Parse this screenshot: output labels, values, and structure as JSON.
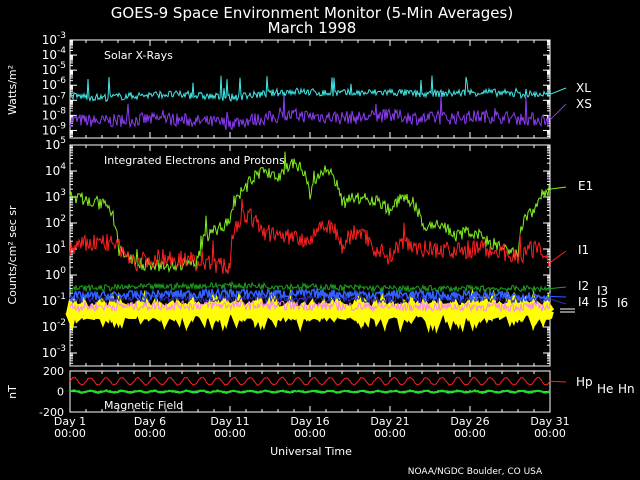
{
  "title": {
    "line1": "GOES-9 Space Environment Monitor (5-Min Averages)",
    "line2": "March 1998"
  },
  "footer": "NOAA/NGDC Boulder, CO USA",
  "x_axis": {
    "label": "Universal Time",
    "ticks": [
      {
        "day": 1,
        "l1": "Day 1",
        "l2": "00:00"
      },
      {
        "day": 6,
        "l1": "Day 6",
        "l2": "00:00"
      },
      {
        "day": 11,
        "l1": "Day 11",
        "l2": "00:00"
      },
      {
        "day": 16,
        "l1": "Day 16",
        "l2": "00:00"
      },
      {
        "day": 21,
        "l1": "Day 21",
        "l2": "00:00"
      },
      {
        "day": 26,
        "l1": "Day 26",
        "l2": "00:00"
      },
      {
        "day": 31,
        "l1": "Day 31",
        "l2": "00:00"
      }
    ],
    "xlim": [
      1,
      31
    ]
  },
  "chart_data": [
    {
      "type": "line",
      "panel": "xray",
      "title": "Solar X-Rays",
      "ylabel": "Watts/m²",
      "yscale": "log",
      "ylim_exp": [
        -9.5,
        -3
      ],
      "tick_exponents": [
        -3,
        -4,
        -5,
        -6,
        -7,
        -8,
        -9
      ],
      "series": [
        {
          "name": "XL",
          "color": "#40e8e8",
          "x": [
            1,
            3,
            5,
            7,
            9,
            11,
            13,
            15,
            17,
            19,
            21,
            23,
            25,
            27,
            29,
            31
          ],
          "y": [
            2e-07,
            1.5e-07,
            2e-07,
            2.5e-07,
            2e-07,
            1.5e-07,
            2.5e-07,
            4e-07,
            3e-07,
            3e-07,
            3.5e-07,
            2.5e-07,
            3e-07,
            3.5e-07,
            2.5e-07,
            2.5e-07
          ]
        },
        {
          "name": "XS",
          "color": "#8a3cf0",
          "x": [
            1,
            3,
            5,
            7,
            9,
            11,
            13,
            15,
            17,
            19,
            21,
            23,
            25,
            27,
            29,
            31
          ],
          "y": [
            5e-09,
            4e-09,
            5e-09,
            6e-09,
            4e-09,
            3e-09,
            6e-09,
            1e-08,
            8e-09,
            7e-09,
            1e-08,
            6e-09,
            7e-09,
            9e-09,
            6e-09,
            5e-09
          ]
        }
      ]
    },
    {
      "type": "line",
      "panel": "particles",
      "title": "Integrated Electrons and Protons",
      "ylabel": "Counts/cm² sec sr",
      "yscale": "log",
      "ylim_exp": [
        -3.5,
        5
      ],
      "tick_exponents": [
        5,
        4,
        3,
        2,
        1,
        0,
        -1,
        -2,
        -3
      ],
      "series": [
        {
          "name": "E1",
          "color": "#80f020",
          "x": [
            1,
            2,
            3,
            4,
            5,
            7,
            9,
            11,
            12,
            13,
            14,
            15,
            16,
            17,
            18,
            19,
            20,
            21,
            22,
            23,
            24,
            25,
            26,
            27,
            28,
            29,
            30,
            31
          ],
          "y": [
            1000,
            800,
            500,
            10,
            3,
            2,
            3,
            100,
            2000,
            10000,
            5000,
            20000,
            1000,
            10000,
            500,
            1000,
            800,
            300,
            1000,
            50,
            100,
            30,
            50,
            20,
            10,
            5,
            300,
            2000
          ]
        },
        {
          "name": "I1",
          "color": "#ff2020",
          "x": [
            1,
            3,
            5,
            7,
            9,
            11,
            12,
            13,
            14,
            15,
            16,
            17,
            18,
            19,
            20,
            21,
            22,
            23,
            24,
            25,
            26,
            27,
            28,
            29,
            30,
            31
          ],
          "y": [
            10,
            20,
            3,
            5,
            3,
            2,
            200,
            50,
            30,
            30,
            20,
            100,
            10,
            50,
            10,
            5,
            20,
            10,
            10,
            8,
            10,
            10,
            8,
            5,
            10,
            3
          ]
        },
        {
          "name": "I2",
          "color": "#20a020",
          "x": [
            1,
            11,
            21,
            31
          ],
          "y": [
            0.3,
            0.4,
            0.3,
            0.3
          ]
        },
        {
          "name": "I3",
          "color": "#3060ff",
          "x": [
            1,
            11,
            21,
            31
          ],
          "y": [
            0.15,
            0.2,
            0.18,
            0.15
          ]
        },
        {
          "name": "I4",
          "color": "#3030c0",
          "x": [
            1,
            11,
            21,
            31
          ],
          "y": [
            0.12,
            0.13,
            0.12,
            0.12
          ]
        },
        {
          "name": "I5",
          "color": "#ff80ff",
          "x": [
            1,
            11,
            21,
            31
          ],
          "y": [
            0.06,
            0.07,
            0.06,
            0.06
          ]
        },
        {
          "name": "I6",
          "color": "#ffff00",
          "x": [
            1,
            11,
            21,
            31
          ],
          "y": [
            0.04,
            0.04,
            0.04,
            0.04
          ]
        }
      ]
    },
    {
      "type": "line",
      "panel": "magnetic",
      "title": "Magnetic Field",
      "ylabel": "nT",
      "ylim": [
        -200,
        200
      ],
      "ticks": [
        200,
        0,
        -200
      ],
      "series": [
        {
          "name": "Hp",
          "color": "#ff2020",
          "x": [
            1,
            31
          ],
          "y": [
            100,
            100
          ]
        },
        {
          "name": "He",
          "color": "#20e020",
          "x": [
            1,
            31
          ],
          "y": [
            0,
            0
          ]
        },
        {
          "name": "Hn",
          "color": "#40e8e8",
          "x": [
            1,
            31
          ],
          "y": [
            -5,
            -5
          ]
        }
      ]
    }
  ]
}
